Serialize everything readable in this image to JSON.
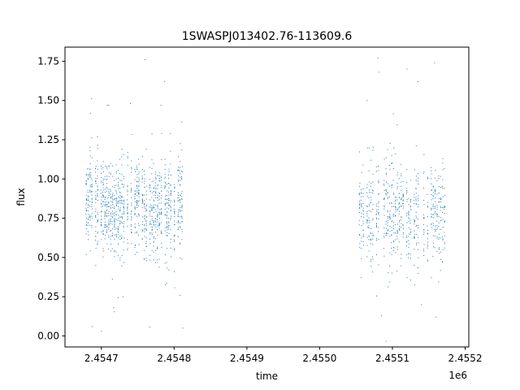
{
  "chart_data": {
    "type": "scatter",
    "title": "1SWASPJ013402.76-113609.6",
    "xlabel": "time",
    "ylabel": "flux",
    "x_offset_label": "1e6",
    "xlim": [
      2454650,
      2455205
    ],
    "ylim": [
      -0.07,
      1.84
    ],
    "xticks": [
      2454700,
      2454800,
      2454900,
      2455000,
      2455100,
      2455200
    ],
    "xtick_labels": [
      "2.4547",
      "2.4548",
      "2.4549",
      "2.4550",
      "2.4551",
      "2.4552"
    ],
    "yticks": [
      0.0,
      0.25,
      0.5,
      0.75,
      1.0,
      1.25,
      1.5,
      1.75
    ],
    "ytick_labels": [
      "0.00",
      "0.25",
      "0.50",
      "0.75",
      "1.00",
      "1.25",
      "1.50",
      "1.75"
    ],
    "grid": false,
    "marker_color": "#1f77b4",
    "series": [
      {
        "clusters": [
          {
            "time_range": [
              2454678,
              2454812
            ],
            "flux_center": 0.82,
            "flux_spread": 0.15,
            "n_points": 1400
          },
          {
            "time_range": [
              2455051,
              2455173
            ],
            "flux_center": 0.78,
            "flux_spread": 0.16,
            "n_points": 900
          }
        ],
        "outliers": [
          {
            "time": 2454700,
            "flux": 0.03
          },
          {
            "time": 2454717,
            "flux": 0.18
          },
          {
            "time": 2454760,
            "flux": 1.76
          },
          {
            "time": 2454787,
            "flux": 1.62
          },
          {
            "time": 2454812,
            "flux": 0.05
          },
          {
            "time": 2454708,
            "flux": 1.47
          },
          {
            "time": 2454740,
            "flux": 1.48
          },
          {
            "time": 2454782,
            "flux": 1.47
          },
          {
            "time": 2454730,
            "flux": 0.25
          },
          {
            "time": 2455080,
            "flux": 1.77
          },
          {
            "time": 2455082,
            "flux": 1.68
          },
          {
            "time": 2455085,
            "flux": 0.13
          },
          {
            "time": 2455065,
            "flux": 1.5
          },
          {
            "time": 2455120,
            "flux": 1.7
          },
          {
            "time": 2455158,
            "flux": 1.74
          },
          {
            "time": 2455160,
            "flux": 0.12
          },
          {
            "time": 2455140,
            "flux": 0.2
          },
          {
            "time": 2455135,
            "flux": 1.62
          }
        ]
      }
    ]
  }
}
